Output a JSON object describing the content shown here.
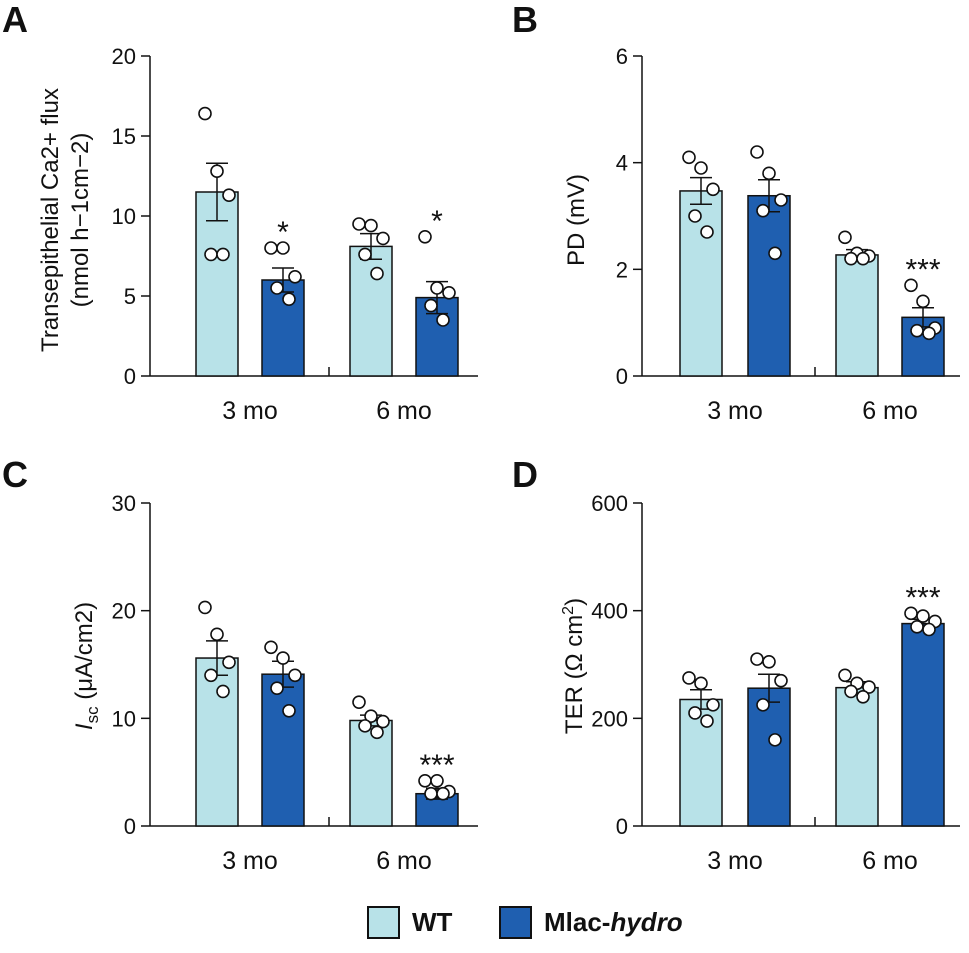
{
  "legend": {
    "wt_label": "WT",
    "mlac_prefix": "Mlac-",
    "mlac_suffix": "hydro",
    "wt_color": "#b8e2e8",
    "mlac_color": "#1f5fb0"
  },
  "chart_data": [
    {
      "panel": "A",
      "type": "bar",
      "ylabel_line1": "Transepithelial Ca2+ flux",
      "ylabel_line2": "(nmol h−1cm−2)",
      "ylim": [
        0,
        20
      ],
      "yticks": [
        0,
        5,
        10,
        15,
        20
      ],
      "categories": [
        "3 mo",
        "6 mo"
      ],
      "series": [
        {
          "name": "WT",
          "values": [
            11.5,
            8.1
          ],
          "sem": [
            1.8,
            0.8
          ],
          "points": [
            [
              16.4,
              12.8,
              11.3,
              7.6,
              7.6
            ],
            [
              9.5,
              9.4,
              8.6,
              7.6,
              6.4
            ]
          ]
        },
        {
          "name": "Mlac-hydro",
          "values": [
            6.0,
            4.9
          ],
          "sem": [
            0.75,
            1.0
          ],
          "points": [
            [
              8.0,
              8.0,
              6.2,
              5.5,
              4.8
            ],
            [
              8.7,
              5.5,
              5.2,
              4.4,
              3.5
            ]
          ]
        }
      ],
      "annotations": [
        {
          "series": 1,
          "category": 0,
          "text": "*"
        },
        {
          "series": 1,
          "category": 1,
          "text": "*"
        }
      ]
    },
    {
      "panel": "B",
      "type": "bar",
      "ylabel": "PD (mV)",
      "ylim": [
        0,
        6
      ],
      "yticks": [
        0,
        2,
        4,
        6
      ],
      "categories": [
        "3 mo",
        "6 mo"
      ],
      "series": [
        {
          "name": "WT",
          "values": [
            3.47,
            2.27
          ],
          "sem": [
            0.25,
            0.1
          ],
          "points": [
            [
              4.1,
              3.9,
              3.5,
              3.0,
              2.7
            ],
            [
              2.6,
              2.3,
              2.25,
              2.2,
              2.2
            ]
          ]
        },
        {
          "name": "Mlac-hydro",
          "values": [
            3.38,
            1.1
          ],
          "sem": [
            0.3,
            0.18
          ],
          "points": [
            [
              4.2,
              3.8,
              3.3,
              3.1,
              2.3
            ],
            [
              1.7,
              1.4,
              0.9,
              0.85,
              0.8
            ]
          ]
        }
      ],
      "annotations": [
        {
          "series": 1,
          "category": 1,
          "text": "***"
        }
      ]
    },
    {
      "panel": "C",
      "type": "bar",
      "ylabel_main": "I",
      "ylabel_sub": "sc",
      "ylabel_rest": " (μA/cm2)",
      "ylim": [
        0,
        30
      ],
      "yticks": [
        0,
        10,
        20,
        30
      ],
      "categories": [
        "3 mo",
        "6 mo"
      ],
      "series": [
        {
          "name": "WT",
          "values": [
            15.6,
            9.8
          ],
          "sem": [
            1.6,
            0.5
          ],
          "points": [
            [
              20.3,
              17.8,
              15.2,
              14.0,
              12.5
            ],
            [
              11.5,
              10.2,
              9.7,
              9.3,
              8.7
            ]
          ]
        },
        {
          "name": "Mlac-hydro",
          "values": [
            14.1,
            3.0
          ],
          "sem": [
            1.2,
            0.5
          ],
          "points": [
            [
              16.6,
              15.6,
              14.0,
              12.8,
              10.7
            ],
            [
              4.2,
              4.2,
              3.2,
              3.0,
              3.0
            ]
          ]
        }
      ],
      "annotations": [
        {
          "series": 1,
          "category": 1,
          "text": "***"
        }
      ]
    },
    {
      "panel": "D",
      "type": "bar",
      "ylabel_main": "TER (Ω cm",
      "ylabel_sup": "2",
      "ylabel_end": ")",
      "ylim": [
        0,
        600
      ],
      "yticks": [
        0,
        200,
        400,
        600
      ],
      "categories": [
        "3 mo",
        "6 mo"
      ],
      "series": [
        {
          "name": "WT",
          "values": [
            235,
            257
          ],
          "sem": [
            18,
            11
          ],
          "points": [
            [
              275,
              265,
              225,
              210,
              195
            ],
            [
              280,
              265,
              258,
              250,
              240
            ]
          ]
        },
        {
          "name": "Mlac-hydro",
          "values": [
            256,
            376
          ],
          "sem": [
            26,
            8
          ],
          "points": [
            [
              310,
              305,
              270,
              225,
              160
            ],
            [
              395,
              390,
              380,
              370,
              365
            ]
          ]
        }
      ],
      "annotations": [
        {
          "series": 1,
          "category": 1,
          "text": "***"
        }
      ]
    }
  ]
}
